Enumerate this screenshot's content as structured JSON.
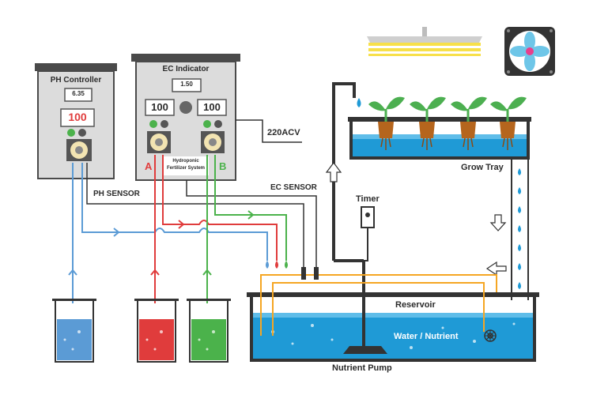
{
  "labels": {
    "ph_controller": "PH Controller",
    "ec_indicator": "EC Indicator",
    "ph_display": "6.35",
    "ec_display": "1.50",
    "ph_setpoint": "100",
    "ec_setpoint_a": "100",
    "ec_setpoint_b": "100",
    "pump_a": "A",
    "pump_b": "B",
    "fertilizer_line1": "Hydroponic",
    "fertilizer_line2": "Fertilizer System",
    "power": "220ACV",
    "ph_sensor": "PH SENSOR",
    "ec_sensor": "EC SENSOR",
    "timer": "Timer",
    "grow_tray": "Grow Tray",
    "reservoir": "Reservoir",
    "water_nutrient": "Water / Nutrient",
    "nutrient_pump": "Nutrient Pump"
  },
  "colors": {
    "cabinet": "#dcdcdc",
    "cabinet_frame": "#4a4a4a",
    "water": "#1f9ad6",
    "ph_line": "#5b9bd5",
    "nutrient_a": "#e03c3c",
    "nutrient_b": "#4bb24b",
    "orange_line": "#f5a623",
    "dark_line": "#333333",
    "leaf": "#4caf50",
    "pot": "#b5651d",
    "fan_blade": "#6ec6e8",
    "grow_light": "#f7e04a"
  },
  "icons": [
    "fan-icon",
    "grow-light-icon",
    "plant-icon",
    "beaker-icon",
    "peristaltic-pump-icon",
    "timer-icon",
    "pump-icon",
    "arrow-icon",
    "water-drop-icon"
  ]
}
